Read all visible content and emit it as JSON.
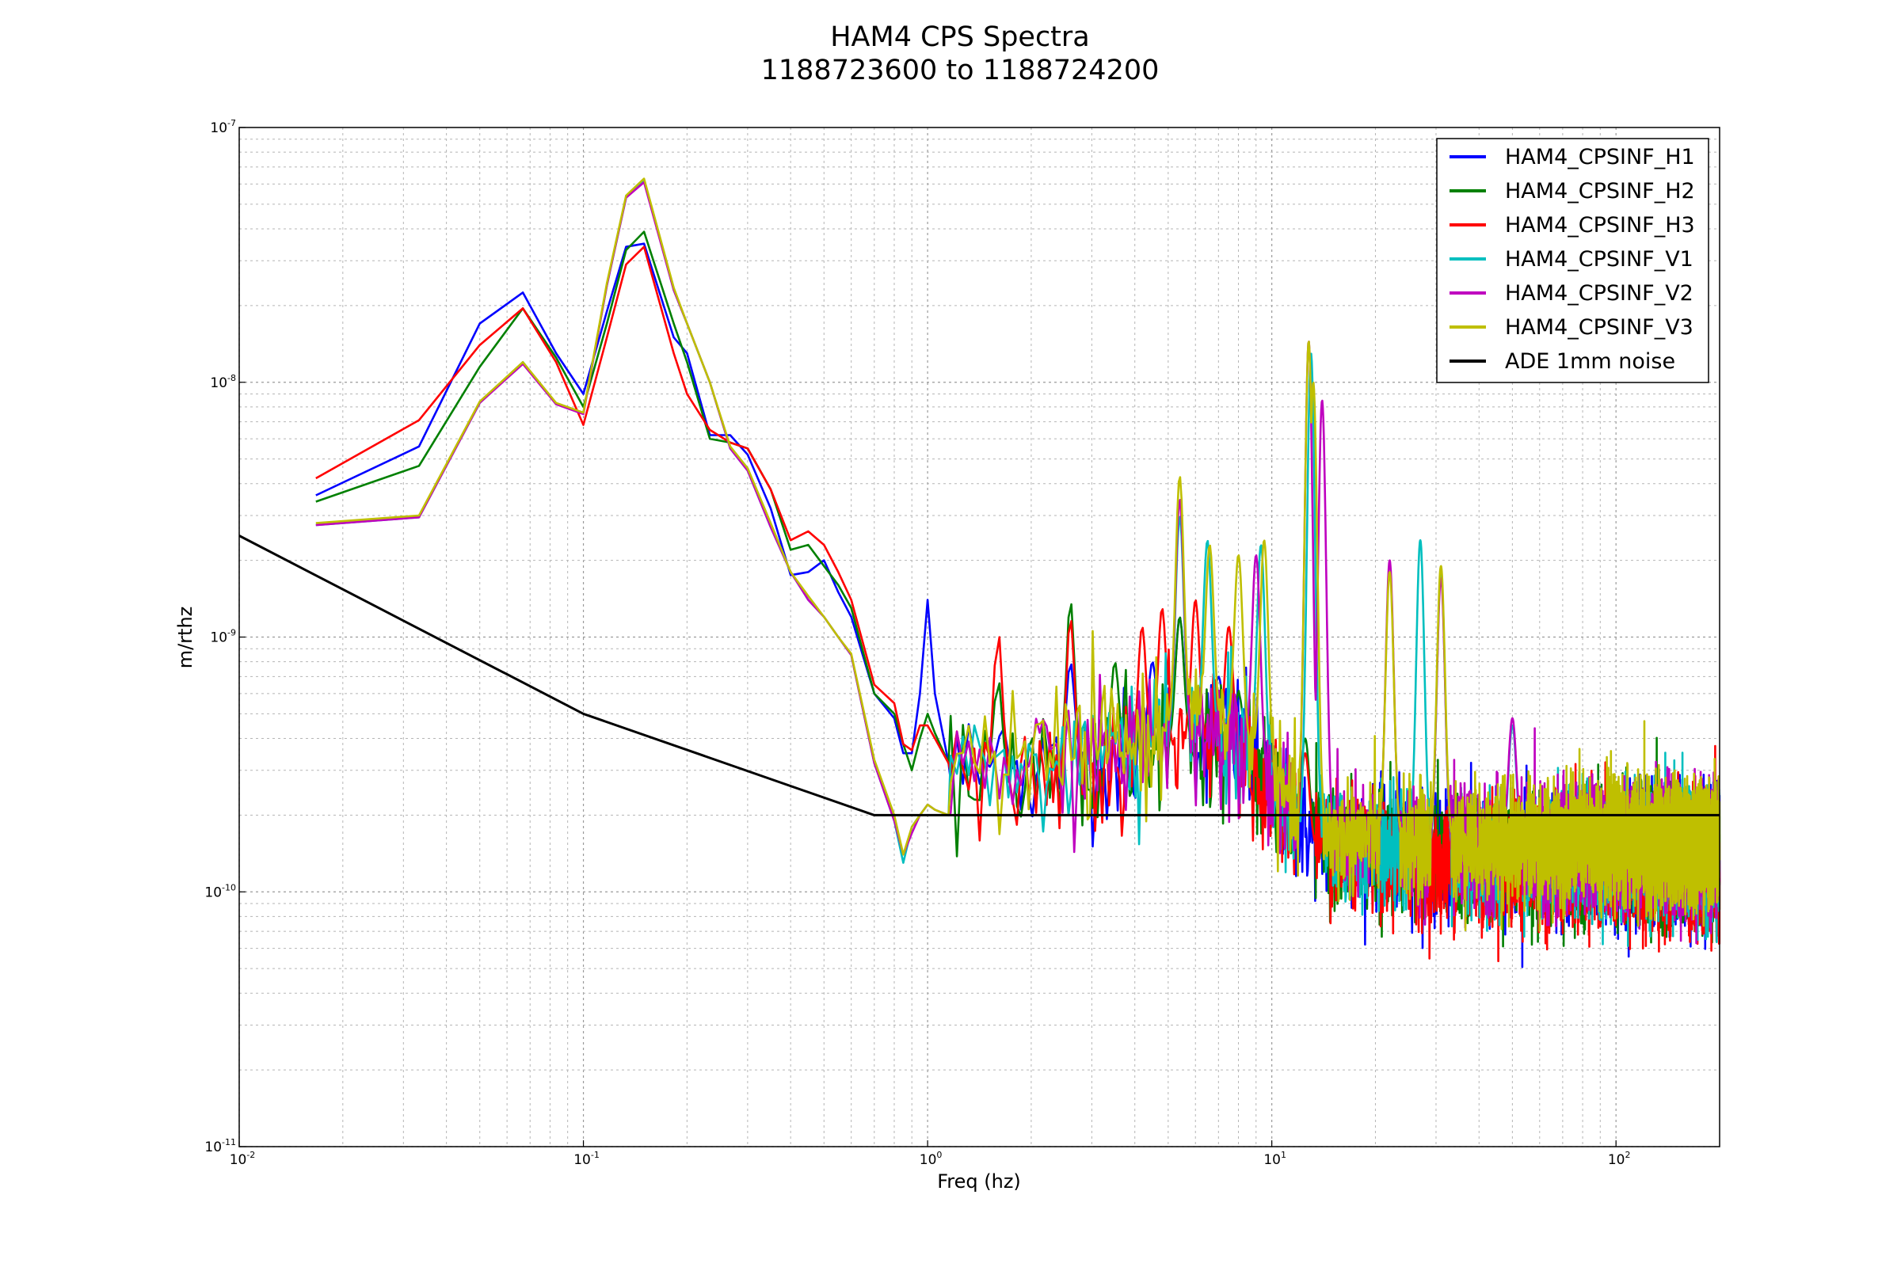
{
  "chart_data": {
    "type": "line",
    "title": "HAM4 CPS Spectra",
    "subtitle": "1188723600 to 1188724200",
    "xlabel": "Freq (hz)",
    "ylabel": "m/rthz",
    "xscale": "log",
    "yscale": "log",
    "xlim": [
      0.01,
      200
    ],
    "ylim": [
      1e-11,
      1e-07
    ],
    "grid": true,
    "legend_position": "top-right",
    "x_ticks": [
      {
        "base": "10",
        "exp": "-2",
        "value": 0.01
      },
      {
        "base": "10",
        "exp": "-1",
        "value": 0.1
      },
      {
        "base": "10",
        "exp": "0",
        "value": 1
      },
      {
        "base": "10",
        "exp": "1",
        "value": 10
      },
      {
        "base": "10",
        "exp": "2",
        "value": 100
      }
    ],
    "y_ticks": [
      {
        "base": "10",
        "exp": "-7",
        "value": 1e-07
      },
      {
        "base": "10",
        "exp": "-8",
        "value": 1e-08
      },
      {
        "base": "10",
        "exp": "-9",
        "value": 1e-09
      },
      {
        "base": "10",
        "exp": "-10",
        "value": 1e-10
      },
      {
        "base": "10",
        "exp": "-11",
        "value": 1e-11
      }
    ],
    "series": [
      {
        "name": "HAM4_CPSINF_H1",
        "color": "#0000ff",
        "points": [
          [
            0.0167,
            3.6e-09
          ],
          [
            0.0333,
            5.6e-09
          ],
          [
            0.05,
            1.7e-08
          ],
          [
            0.0667,
            2.25e-08
          ],
          [
            0.0833,
            1.3e-08
          ],
          [
            0.1,
            9e-09
          ],
          [
            0.117,
            1.9e-08
          ],
          [
            0.133,
            3.4e-08
          ],
          [
            0.15,
            3.5e-08
          ],
          [
            0.183,
            1.5e-08
          ],
          [
            0.2,
            1.3e-08
          ],
          [
            0.233,
            6.2e-09
          ],
          [
            0.267,
            6.2e-09
          ],
          [
            0.3,
            5.2e-09
          ],
          [
            0.35,
            3.2e-09
          ],
          [
            0.4,
            1.75e-09
          ],
          [
            0.45,
            1.8e-09
          ],
          [
            0.5,
            2e-09
          ],
          [
            0.55,
            1.5e-09
          ],
          [
            0.6,
            1.2e-09
          ],
          [
            0.7,
            6e-10
          ],
          [
            0.8,
            4.8e-10
          ],
          [
            0.85,
            3.5e-10
          ],
          [
            0.9,
            3.5e-10
          ],
          [
            0.95,
            6e-10
          ],
          [
            1,
            1.4e-09
          ],
          [
            1.05,
            6e-10
          ],
          [
            1.15,
            3.2e-10
          ]
        ]
      },
      {
        "name": "HAM4_CPSINF_H2",
        "color": "#008000",
        "points": [
          [
            0.0167,
            3.4e-09
          ],
          [
            0.0333,
            4.7e-09
          ],
          [
            0.05,
            1.15e-08
          ],
          [
            0.0667,
            1.95e-08
          ],
          [
            0.0833,
            1.25e-08
          ],
          [
            0.1,
            8e-09
          ],
          [
            0.117,
            1.7e-08
          ],
          [
            0.133,
            3.3e-08
          ],
          [
            0.15,
            3.9e-08
          ],
          [
            0.183,
            1.7e-08
          ],
          [
            0.2,
            1.2e-08
          ],
          [
            0.233,
            6e-09
          ],
          [
            0.267,
            5.8e-09
          ],
          [
            0.3,
            5.5e-09
          ],
          [
            0.35,
            3.8e-09
          ],
          [
            0.4,
            2.2e-09
          ],
          [
            0.45,
            2.3e-09
          ],
          [
            0.5,
            1.9e-09
          ],
          [
            0.55,
            1.6e-09
          ],
          [
            0.6,
            1.3e-09
          ],
          [
            0.7,
            6e-10
          ],
          [
            0.8,
            5e-10
          ],
          [
            0.85,
            3.8e-10
          ],
          [
            0.9,
            3e-10
          ],
          [
            0.95,
            4e-10
          ],
          [
            1,
            5e-10
          ],
          [
            1.05,
            4.2e-10
          ],
          [
            1.15,
            3.2e-10
          ]
        ]
      },
      {
        "name": "HAM4_CPSINF_H3",
        "color": "#ff0000",
        "points": [
          [
            0.0167,
            4.2e-09
          ],
          [
            0.0333,
            7.1e-09
          ],
          [
            0.05,
            1.4e-08
          ],
          [
            0.0667,
            1.95e-08
          ],
          [
            0.0833,
            1.2e-08
          ],
          [
            0.1,
            6.8e-09
          ],
          [
            0.117,
            1.5e-08
          ],
          [
            0.133,
            2.9e-08
          ],
          [
            0.15,
            3.4e-08
          ],
          [
            0.183,
            1.3e-08
          ],
          [
            0.2,
            9e-09
          ],
          [
            0.233,
            6.5e-09
          ],
          [
            0.267,
            5.8e-09
          ],
          [
            0.3,
            5.5e-09
          ],
          [
            0.35,
            3.8e-09
          ],
          [
            0.4,
            2.4e-09
          ],
          [
            0.45,
            2.6e-09
          ],
          [
            0.5,
            2.3e-09
          ],
          [
            0.55,
            1.8e-09
          ],
          [
            0.6,
            1.4e-09
          ],
          [
            0.7,
            6.5e-10
          ],
          [
            0.8,
            5.5e-10
          ],
          [
            0.85,
            3.8e-10
          ],
          [
            0.9,
            3.6e-10
          ],
          [
            0.95,
            4.5e-10
          ],
          [
            1,
            4.5e-10
          ],
          [
            1.05,
            4e-10
          ],
          [
            1.15,
            3.2e-10
          ]
        ]
      },
      {
        "name": "HAM4_CPSINF_V1",
        "color": "#00bfbf",
        "points": [
          [
            0.0167,
            2.75e-09
          ],
          [
            0.0333,
            2.95e-09
          ],
          [
            0.05,
            8.3e-09
          ],
          [
            0.0667,
            1.2e-08
          ],
          [
            0.0833,
            8.2e-09
          ],
          [
            0.1,
            7.6e-09
          ],
          [
            0.117,
            2.4e-08
          ],
          [
            0.133,
            5.3e-08
          ],
          [
            0.15,
            6.2e-08
          ],
          [
            0.183,
            2.3e-08
          ],
          [
            0.2,
            1.7e-08
          ],
          [
            0.233,
            1e-08
          ],
          [
            0.267,
            5.5e-09
          ],
          [
            0.3,
            4.5e-09
          ],
          [
            0.35,
            2.7e-09
          ],
          [
            0.4,
            1.8e-09
          ],
          [
            0.45,
            1.4e-09
          ],
          [
            0.5,
            1.2e-09
          ],
          [
            0.55,
            1e-09
          ],
          [
            0.6,
            8.5e-10
          ],
          [
            0.7,
            3.2e-10
          ],
          [
            0.8,
            1.9e-10
          ],
          [
            0.85,
            1.3e-10
          ],
          [
            0.9,
            1.8e-10
          ],
          [
            0.95,
            2e-10
          ],
          [
            1,
            2.2e-10
          ],
          [
            1.05,
            2.1e-10
          ],
          [
            1.15,
            2e-10
          ]
        ]
      },
      {
        "name": "HAM4_CPSINF_V2",
        "color": "#bf00bf",
        "points": [
          [
            0.0167,
            2.75e-09
          ],
          [
            0.0333,
            2.95e-09
          ],
          [
            0.05,
            8.3e-09
          ],
          [
            0.0667,
            1.18e-08
          ],
          [
            0.0833,
            8.2e-09
          ],
          [
            0.1,
            7.5e-09
          ],
          [
            0.117,
            2.4e-08
          ],
          [
            0.133,
            5.3e-08
          ],
          [
            0.15,
            6.1e-08
          ],
          [
            0.183,
            2.3e-08
          ],
          [
            0.2,
            1.7e-08
          ],
          [
            0.233,
            1e-08
          ],
          [
            0.267,
            5.5e-09
          ],
          [
            0.3,
            4.5e-09
          ],
          [
            0.35,
            2.7e-09
          ],
          [
            0.4,
            1.8e-09
          ],
          [
            0.45,
            1.4e-09
          ],
          [
            0.5,
            1.2e-09
          ],
          [
            0.55,
            1e-09
          ],
          [
            0.6,
            8.5e-10
          ],
          [
            0.7,
            3.2e-10
          ],
          [
            0.8,
            1.9e-10
          ],
          [
            0.85,
            1.4e-10
          ],
          [
            0.9,
            1.7e-10
          ],
          [
            0.95,
            2e-10
          ],
          [
            1,
            2.2e-10
          ],
          [
            1.05,
            2.1e-10
          ],
          [
            1.15,
            2e-10
          ]
        ]
      },
      {
        "name": "HAM4_CPSINF_V3",
        "color": "#bfbf00",
        "points": [
          [
            0.0167,
            2.8e-09
          ],
          [
            0.0333,
            3e-09
          ],
          [
            0.05,
            8.4e-09
          ],
          [
            0.0667,
            1.2e-08
          ],
          [
            0.0833,
            8.3e-09
          ],
          [
            0.1,
            7.6e-09
          ],
          [
            0.117,
            2.45e-08
          ],
          [
            0.133,
            5.4e-08
          ],
          [
            0.15,
            6.3e-08
          ],
          [
            0.183,
            2.35e-08
          ],
          [
            0.2,
            1.7e-08
          ],
          [
            0.233,
            1e-08
          ],
          [
            0.267,
            5.6e-09
          ],
          [
            0.3,
            4.6e-09
          ],
          [
            0.35,
            2.8e-09
          ],
          [
            0.4,
            1.8e-09
          ],
          [
            0.45,
            1.45e-09
          ],
          [
            0.5,
            1.2e-09
          ],
          [
            0.55,
            1e-09
          ],
          [
            0.6,
            8.6e-10
          ],
          [
            0.7,
            3.3e-10
          ],
          [
            0.8,
            2e-10
          ],
          [
            0.85,
            1.4e-10
          ],
          [
            0.9,
            1.8e-10
          ],
          [
            0.95,
            2e-10
          ],
          [
            1,
            2.2e-10
          ],
          [
            1.05,
            2.1e-10
          ],
          [
            1.15,
            2e-10
          ]
        ]
      },
      {
        "name": "ADE 1mm noise",
        "color": "#000000",
        "points": [
          [
            0.01,
            2.5e-09
          ],
          [
            0.1,
            5e-10
          ],
          [
            0.7,
            2e-10
          ],
          [
            200,
            2e-10
          ]
        ]
      }
    ],
    "approximate_spectra_above_1hz": {
      "note_free": true,
      "floor": [
        [
          1.2,
          3e-10
        ],
        [
          2,
          3e-10
        ],
        [
          3,
          3.3e-10
        ],
        [
          4,
          3.5e-10
        ],
        [
          5,
          4e-10
        ],
        [
          6,
          4.2e-10
        ],
        [
          8,
          4e-10
        ],
        [
          10,
          2.5e-10
        ],
        [
          12,
          1.8e-10
        ],
        [
          15,
          1.5e-10
        ],
        [
          20,
          1.5e-10
        ],
        [
          30,
          1.4e-10
        ],
        [
          50,
          1.4e-10
        ],
        [
          100,
          1.45e-10
        ],
        [
          200,
          1.4e-10
        ]
      ],
      "peaks": {
        "HAM4_CPSINF_H1": [
          [
            1.65,
            4.5e-10
          ],
          [
            2.6,
            8e-10
          ],
          [
            4.5,
            8e-10
          ],
          [
            5.4,
            1.2e-09
          ],
          [
            7,
            7e-10
          ]
        ],
        "HAM4_CPSINF_H2": [
          [
            1.6,
            7e-10
          ],
          [
            2.6,
            1.4e-09
          ],
          [
            3.5,
            8e-10
          ],
          [
            5.4,
            1.2e-09
          ],
          [
            8,
            6e-10
          ],
          [
            12.5,
            4e-10
          ]
        ],
        "HAM4_CPSINF_H3": [
          [
            1.6,
            1.1e-09
          ],
          [
            2.6,
            1.2e-09
          ],
          [
            4.2,
            1.1e-09
          ],
          [
            4.8,
            1.3e-09
          ],
          [
            6,
            1.4e-09
          ],
          [
            7.5,
            1.1e-09
          ],
          [
            12.5,
            3.5e-10
          ]
        ],
        "HAM4_CPSINF_V1": [
          [
            5.4,
            3e-09
          ],
          [
            6.5,
            2.4e-09
          ],
          [
            9.3,
            2.3e-09
          ],
          [
            13,
            1.3e-08
          ],
          [
            27,
            2.4e-09
          ],
          [
            31,
            1.8e-09
          ],
          [
            50,
            4.5e-10
          ]
        ],
        "HAM4_CPSINF_V2": [
          [
            5.4,
            3.5e-09
          ],
          [
            9,
            2.1e-09
          ],
          [
            12.8,
            1.45e-08
          ],
          [
            14,
            8.5e-09
          ],
          [
            22,
            2e-09
          ],
          [
            31,
            1.7e-09
          ],
          [
            50,
            4.8e-10
          ]
        ],
        "HAM4_CPSINF_V3": [
          [
            5.4,
            4.3e-09
          ],
          [
            6.6,
            2.3e-09
          ],
          [
            8,
            2.1e-09
          ],
          [
            9.5,
            2.4e-09
          ],
          [
            12.8,
            1.45e-08
          ],
          [
            13.2,
            1e-08
          ],
          [
            22,
            1.8e-09
          ],
          [
            31,
            1.9e-09
          ]
        ]
      }
    }
  }
}
